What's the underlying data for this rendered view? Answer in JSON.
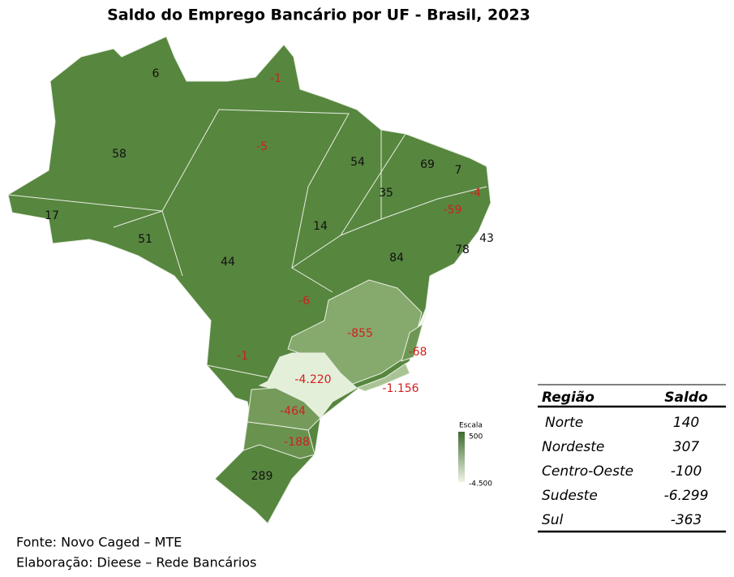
{
  "title": "Saldo do Emprego Bancário por UF - Brasil, 2023",
  "map": {
    "labels": [
      "6",
      "-1",
      "58",
      "-5",
      "54",
      "69",
      "7",
      "-4",
      "35",
      "-59",
      "78",
      "43",
      "14",
      "84",
      "17",
      "51",
      "44",
      "-6",
      "-855",
      "-68",
      "-1",
      "-4.220",
      "-1.156",
      "-464",
      "-188",
      "289"
    ]
  },
  "legend": {
    "title": "Escala",
    "max": "500",
    "min": "-4.500"
  },
  "table": {
    "header": [
      "Região",
      "Saldo"
    ],
    "rows": [
      [
        "Norte",
        "140"
      ],
      [
        "Nordeste",
        "307"
      ],
      [
        "Centro-Oeste",
        "-100"
      ],
      [
        "Sudeste",
        "-6.299"
      ],
      [
        "Sul",
        "-363"
      ]
    ]
  },
  "source": [
    "Fonte: Novo Caged – MTE",
    "Elaboração: Dieese – Rede Bancários"
  ]
}
